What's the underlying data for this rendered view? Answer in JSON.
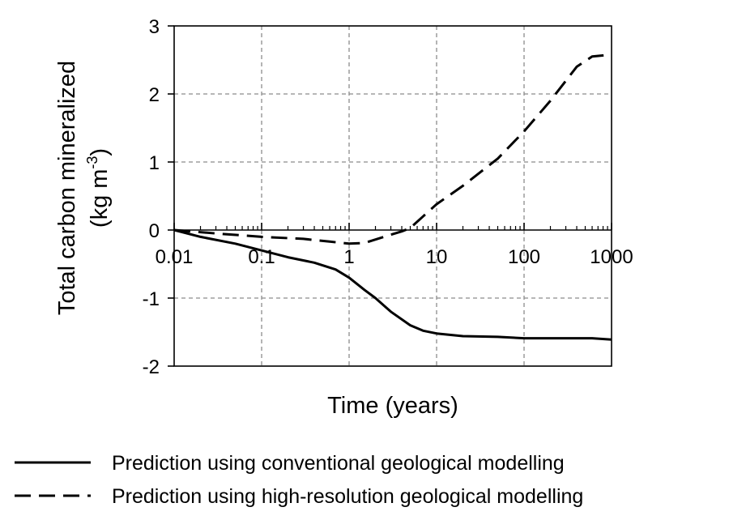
{
  "chart_data": {
    "type": "line",
    "xlabel": "Time (years)",
    "ylabel_line1": "Total carbon mineralized",
    "ylabel_line2_prefix": "(kg m",
    "ylabel_line2_sup": "-3",
    "ylabel_line2_suffix": ")",
    "xscale": "log",
    "xlim": [
      0.01,
      1000
    ],
    "ylim": [
      -2,
      3
    ],
    "xticks": [
      {
        "value": 0.01,
        "label": "0.01"
      },
      {
        "value": 0.1,
        "label": "0.1"
      },
      {
        "value": 1,
        "label": "1"
      },
      {
        "value": 10,
        "label": "10"
      },
      {
        "value": 100,
        "label": "100"
      },
      {
        "value": 1000,
        "label": "1000"
      }
    ],
    "yticks": [
      {
        "value": 3,
        "label": "3"
      },
      {
        "value": 2,
        "label": "2"
      },
      {
        "value": 1,
        "label": "1"
      },
      {
        "value": 0,
        "label": "0"
      },
      {
        "value": -1,
        "label": "-1"
      },
      {
        "value": -2,
        "label": "-2"
      }
    ],
    "grid": true,
    "legend_position": "bottom",
    "series": [
      {
        "name": "Prediction using conventional geological modelling",
        "style": "solid",
        "color": "#000000",
        "points": [
          [
            0.01,
            0.0
          ],
          [
            0.02,
            -0.1
          ],
          [
            0.05,
            -0.2
          ],
          [
            0.1,
            -0.3
          ],
          [
            0.2,
            -0.4
          ],
          [
            0.4,
            -0.48
          ],
          [
            0.7,
            -0.58
          ],
          [
            1.0,
            -0.7
          ],
          [
            1.5,
            -0.88
          ],
          [
            2.0,
            -1.0
          ],
          [
            3.0,
            -1.2
          ],
          [
            5.0,
            -1.4
          ],
          [
            7.0,
            -1.48
          ],
          [
            10,
            -1.52
          ],
          [
            20,
            -1.56
          ],
          [
            50,
            -1.57
          ],
          [
            100,
            -1.59
          ],
          [
            300,
            -1.59
          ],
          [
            600,
            -1.59
          ],
          [
            1000,
            -1.61
          ]
        ]
      },
      {
        "name": "Prediction using high-resolution geological modelling",
        "style": "dashed",
        "color": "#000000",
        "points": [
          [
            0.01,
            0.0
          ],
          [
            0.03,
            -0.05
          ],
          [
            0.1,
            -0.1
          ],
          [
            0.3,
            -0.13
          ],
          [
            0.6,
            -0.17
          ],
          [
            1.0,
            -0.2
          ],
          [
            1.5,
            -0.19
          ],
          [
            2.5,
            -0.1
          ],
          [
            4.0,
            -0.02
          ],
          [
            5.0,
            0.03
          ],
          [
            7.0,
            0.2
          ],
          [
            10,
            0.38
          ],
          [
            20,
            0.65
          ],
          [
            50,
            1.05
          ],
          [
            100,
            1.45
          ],
          [
            200,
            1.9
          ],
          [
            400,
            2.4
          ],
          [
            600,
            2.55
          ],
          [
            1000,
            2.58
          ]
        ]
      }
    ]
  }
}
